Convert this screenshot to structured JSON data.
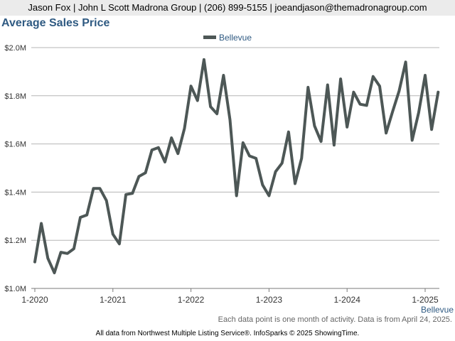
{
  "header": {
    "agent_line": "Jason Fox | John L Scott Madrona Group | (206) 899-5155 | joeandjason@themadronagroup.com"
  },
  "footer": {
    "note": "Each data point is one month of activity. Data is from April 24, 2025.",
    "source": "All data from Northwest Multiple Listing Service®. InfoSparks © 2025 ShowingTime."
  },
  "chart_data": {
    "type": "line",
    "title": "Average Sales Price",
    "xlabel": "Bellevue",
    "ylabel": "",
    "x_start": "2020-01",
    "x_ticks": [
      "1-2020",
      "1-2021",
      "1-2022",
      "1-2023",
      "1-2024",
      "1-2025"
    ],
    "y_ticks": [
      "$1.0M",
      "$1.2M",
      "$1.4M",
      "$1.6M",
      "$1.8M",
      "$2.0M"
    ],
    "ylim": [
      1000000,
      2000000
    ],
    "grid": true,
    "legend_placement": "top-center",
    "series": [
      {
        "name": "Bellevue",
        "color": "#4d5756",
        "values": [
          1110000,
          1270000,
          1125000,
          1065000,
          1150000,
          1145000,
          1165000,
          1295000,
          1305000,
          1415000,
          1415000,
          1365000,
          1225000,
          1185000,
          1390000,
          1395000,
          1465000,
          1480000,
          1575000,
          1585000,
          1525000,
          1625000,
          1560000,
          1665000,
          1840000,
          1780000,
          1950000,
          1755000,
          1725000,
          1885000,
          1700000,
          1385000,
          1605000,
          1550000,
          1540000,
          1430000,
          1385000,
          1485000,
          1520000,
          1650000,
          1435000,
          1540000,
          1835000,
          1675000,
          1610000,
          1845000,
          1595000,
          1870000,
          1670000,
          1815000,
          1765000,
          1760000,
          1880000,
          1840000,
          1645000,
          1735000,
          1820000,
          1940000,
          1615000,
          1730000,
          1885000,
          1660000,
          1815000
        ]
      }
    ]
  }
}
